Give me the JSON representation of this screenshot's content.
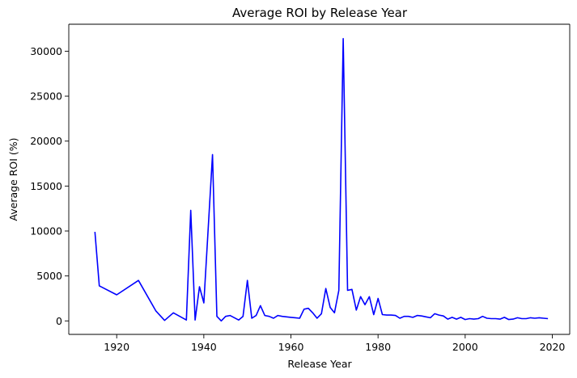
{
  "chart_data": {
    "type": "line",
    "title": "Average ROI by Release Year",
    "xlabel": "Release Year",
    "ylabel": "Average ROI (%)",
    "xlim": [
      1909,
      2024
    ],
    "ylim": [
      -1500,
      33000
    ],
    "xticks": [
      1920,
      1940,
      1960,
      1980,
      2000,
      2020
    ],
    "yticks": [
      0,
      5000,
      10000,
      15000,
      20000,
      25000,
      30000
    ],
    "grid": false,
    "line_color": "#0000ff",
    "series": [
      {
        "x": [
          1915,
          1916,
          1920,
          1925,
          1929,
          1931,
          1933,
          1936,
          1937,
          1938,
          1939,
          1940,
          1942,
          1943,
          1944,
          1945,
          1946,
          1948,
          1949,
          1950,
          1951,
          1952,
          1953,
          1954,
          1955,
          1956,
          1957,
          1958,
          1959,
          1960,
          1961,
          1962,
          1963,
          1964,
          1965,
          1966,
          1967,
          1968,
          1969,
          1970,
          1971,
          1972,
          1973,
          1974,
          1975,
          1976,
          1977,
          1978,
          1979,
          1980,
          1981,
          1982,
          1983,
          1984,
          1985,
          1986,
          1987,
          1988,
          1989,
          1990,
          1991,
          1992,
          1993,
          1994,
          1995,
          1996,
          1997,
          1998,
          1999,
          2000,
          2001,
          2002,
          2003,
          2004,
          2005,
          2006,
          2007,
          2008,
          2009,
          2010,
          2011,
          2012,
          2013,
          2014,
          2015,
          2016,
          2017,
          2018,
          2019
        ],
        "y": [
          9900,
          3900,
          2900,
          4500,
          1100,
          50,
          900,
          100,
          12300,
          100,
          3800,
          2000,
          18500,
          500,
          0,
          500,
          600,
          100,
          500,
          4500,
          300,
          600,
          1700,
          600,
          500,
          300,
          600,
          500,
          450,
          400,
          350,
          300,
          1300,
          1400,
          900,
          300,
          800,
          3600,
          1500,
          900,
          3400,
          31400,
          3400,
          3500,
          1200,
          2700,
          1800,
          2700,
          700,
          2500,
          700,
          650,
          650,
          600,
          300,
          500,
          500,
          400,
          600,
          550,
          450,
          350,
          800,
          650,
          550,
          200,
          400,
          200,
          400,
          150,
          250,
          200,
          250,
          500,
          300,
          250,
          250,
          200,
          400,
          150,
          200,
          350,
          250,
          250,
          350,
          300,
          350,
          300,
          250
        ]
      }
    ]
  }
}
